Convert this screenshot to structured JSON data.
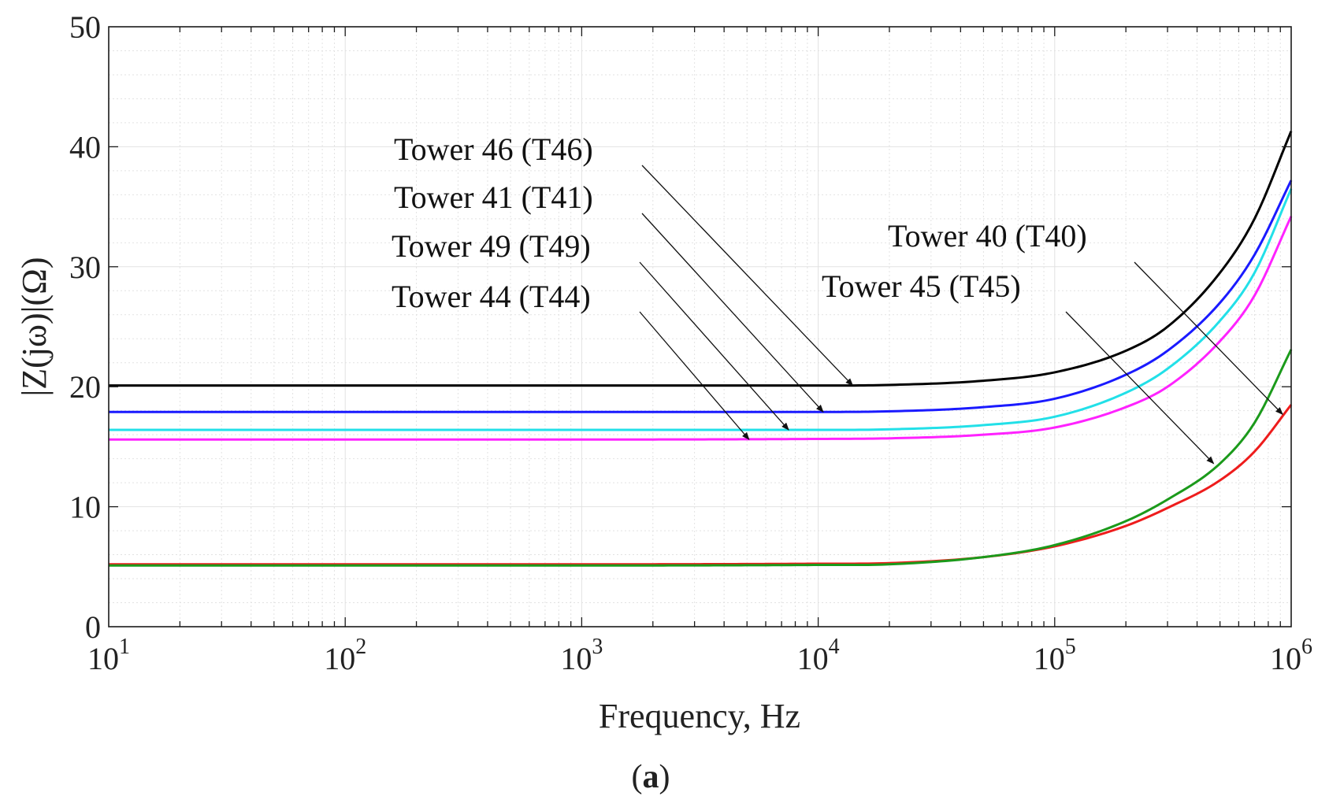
{
  "chart_data": {
    "type": "line",
    "xscale": "log",
    "xlim": [
      10,
      1000000
    ],
    "ylim": [
      0,
      50
    ],
    "xlabel": "Frequency, Hz",
    "ylabel": "|Z(jω)|(Ω)",
    "x_ticks": [
      {
        "base": "10",
        "exp": "1",
        "value": 10
      },
      {
        "base": "10",
        "exp": "2",
        "value": 100
      },
      {
        "base": "10",
        "exp": "3",
        "value": 1000
      },
      {
        "base": "10",
        "exp": "4",
        "value": 10000
      },
      {
        "base": "10",
        "exp": "5",
        "value": 100000
      },
      {
        "base": "10",
        "exp": "6",
        "value": 1000000
      }
    ],
    "y_ticks": [
      "0",
      "10",
      "20",
      "30",
      "40",
      "50"
    ],
    "grid": true,
    "caption": {
      "open": "(",
      "letter": "a",
      "close": ")"
    },
    "x": [
      10,
      100,
      1000,
      10000,
      20000,
      50000,
      100000,
      200000,
      300000,
      500000,
      700000,
      1000000
    ],
    "series": [
      {
        "name": "Tower 46 (T46)",
        "color": "#000000",
        "values": [
          20.1,
          20.1,
          20.1,
          20.1,
          20.15,
          20.5,
          21.2,
          23.0,
          25.0,
          29.5,
          34.0,
          41.3
        ]
      },
      {
        "name": "Tower 41 (T41)",
        "color": "#1a1aff",
        "values": [
          17.9,
          17.9,
          17.9,
          17.9,
          17.95,
          18.3,
          19.0,
          21.0,
          23.0,
          27.0,
          31.0,
          37.2
        ]
      },
      {
        "name": "Tower 49 (T49)",
        "color": "#22e0e8",
        "values": [
          16.4,
          16.4,
          16.4,
          16.4,
          16.45,
          16.8,
          17.5,
          19.5,
          21.5,
          25.5,
          29.5,
          36.5
        ]
      },
      {
        "name": "Tower 44 (T44)",
        "color": "#ff22ff",
        "values": [
          15.6,
          15.6,
          15.6,
          15.65,
          15.7,
          16.0,
          16.6,
          18.3,
          20.0,
          23.8,
          27.6,
          34.2
        ]
      },
      {
        "name": "Tower 40 (T40)",
        "color": "#ee1c1c",
        "values": [
          5.2,
          5.2,
          5.2,
          5.25,
          5.3,
          5.8,
          6.7,
          8.4,
          9.9,
          12.2,
          14.6,
          18.5
        ]
      },
      {
        "name": "Tower 45 (T45)",
        "color": "#1b9a1b",
        "values": [
          5.1,
          5.1,
          5.1,
          5.15,
          5.2,
          5.8,
          6.8,
          8.8,
          10.6,
          13.6,
          17.0,
          23.1
        ]
      }
    ],
    "annotations": [
      {
        "text": "Tower 46 (T46)",
        "target": {
          "x": 14000,
          "y": 20.1
        }
      },
      {
        "text": "Tower 41 (T41)",
        "target": {
          "x": 10500,
          "y": 17.9
        }
      },
      {
        "text": "Tower 49 (T49)",
        "target": {
          "x": 7500,
          "y": 16.4
        }
      },
      {
        "text": "Tower 44 (T44)",
        "target": {
          "x": 5100,
          "y": 15.6
        }
      },
      {
        "text": "Tower 40 (T40)",
        "target": {
          "x": 920000,
          "y": 17.7
        }
      },
      {
        "text": "Tower 45 (T45)",
        "target": {
          "x": 470000,
          "y": 13.6
        }
      }
    ]
  }
}
